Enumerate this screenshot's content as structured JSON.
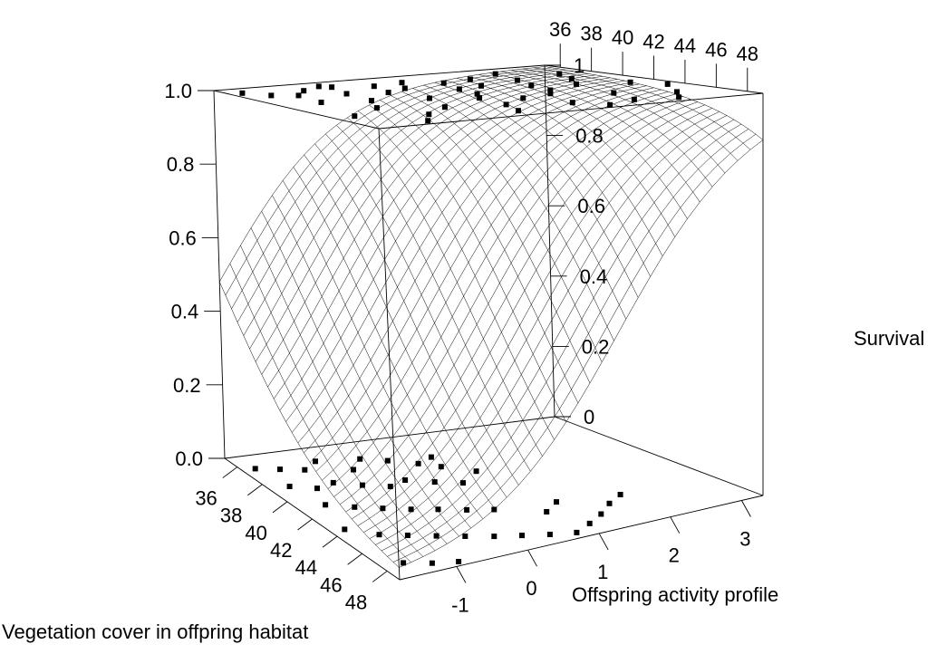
{
  "chart_data": {
    "type": "surface3d",
    "zlabel": "Survival",
    "xlabel": "Offspring activity profile",
    "ylabel": "Vegetation cover in offpring habitat",
    "left_z_ticks": [
      "0.0",
      "0.2",
      "0.4",
      "0.6",
      "0.8",
      "1.0"
    ],
    "right_z_ticks": [
      "0",
      "0.2",
      "0.4",
      "0.6",
      "0.8",
      "1"
    ],
    "x_ticks": [
      "-1",
      "0",
      "1",
      "2",
      "3"
    ],
    "y_ticks": [
      "36",
      "38",
      "40",
      "42",
      "44",
      "46",
      "48"
    ],
    "top_y_ticks": [
      "36",
      "38",
      "40",
      "42",
      "44",
      "46",
      "48"
    ],
    "xlim": [
      -1.8,
      3.3
    ],
    "ylim": [
      35,
      49
    ],
    "zlim": [
      0,
      1
    ],
    "surface": {
      "model": "logistic",
      "intercept": 0.15,
      "coef_activity": 1.1,
      "coef_vegetation": -0.25,
      "vegetation_center": 42
    },
    "top_points": [
      [
        -1.6,
        36.3
      ],
      [
        -1.4,
        37.6
      ],
      [
        -1.1,
        38.2
      ],
      [
        -0.8,
        37.0
      ],
      [
        -0.5,
        38.8
      ],
      [
        -0.3,
        36.6
      ],
      [
        0.0,
        39.4
      ],
      [
        0.2,
        37.3
      ],
      [
        0.4,
        38.6
      ],
      [
        0.7,
        36.9
      ],
      [
        0.9,
        40.1
      ],
      [
        1.1,
        38.0
      ],
      [
        1.3,
        39.7
      ],
      [
        1.6,
        37.5
      ],
      [
        1.8,
        40.8
      ],
      [
        2.0,
        38.9
      ],
      [
        2.3,
        41.5
      ],
      [
        2.6,
        39.8
      ],
      [
        2.9,
        42.3
      ],
      [
        -1.2,
        40.6
      ],
      [
        -0.6,
        41.3
      ],
      [
        0.1,
        42.0
      ],
      [
        0.6,
        43.1
      ],
      [
        1.0,
        44.2
      ],
      [
        1.5,
        43.6
      ],
      [
        2.1,
        45.0
      ],
      [
        2.7,
        46.3
      ],
      [
        -0.9,
        43.4
      ],
      [
        -0.2,
        44.8
      ],
      [
        0.5,
        45.6
      ],
      [
        1.2,
        46.7
      ],
      [
        1.9,
        47.4
      ],
      [
        -1.5,
        45.1
      ],
      [
        -0.7,
        46.4
      ],
      [
        0.3,
        47.6
      ],
      [
        1.4,
        48.3
      ],
      [
        2.4,
        47.9
      ],
      [
        -1.0,
        48.1
      ],
      [
        -0.4,
        36.1
      ],
      [
        0.8,
        41.9
      ],
      [
        1.7,
        42.6
      ],
      [
        2.2,
        36.5
      ],
      [
        2.8,
        38.1
      ],
      [
        3.1,
        43.8
      ]
    ],
    "bottom_points": [
      [
        -1.6,
        36.4
      ],
      [
        -1.3,
        36.8
      ],
      [
        -1.0,
        37.2
      ],
      [
        -0.7,
        36.5
      ],
      [
        -0.4,
        37.9
      ],
      [
        -0.1,
        36.9
      ],
      [
        0.2,
        37.5
      ],
      [
        0.5,
        38.3
      ],
      [
        0.8,
        37.8
      ],
      [
        -1.5,
        38.6
      ],
      [
        -1.2,
        39.2
      ],
      [
        -0.9,
        38.9
      ],
      [
        -0.6,
        39.6
      ],
      [
        -0.3,
        40.2
      ],
      [
        0.0,
        39.8
      ],
      [
        0.3,
        40.5
      ],
      [
        0.6,
        41.1
      ],
      [
        -1.4,
        40.9
      ],
      [
        -1.1,
        41.6
      ],
      [
        -0.8,
        42.2
      ],
      [
        -0.5,
        42.8
      ],
      [
        -0.2,
        43.3
      ],
      [
        0.1,
        43.9
      ],
      [
        0.4,
        44.4
      ],
      [
        -1.6,
        43.5
      ],
      [
        -1.3,
        44.6
      ],
      [
        -1.0,
        45.2
      ],
      [
        -0.7,
        45.8
      ],
      [
        -0.4,
        46.4
      ],
      [
        -0.1,
        47.0
      ],
      [
        0.2,
        47.5
      ],
      [
        0.5,
        48.0
      ],
      [
        0.8,
        48.4
      ],
      [
        1.1,
        47.8
      ],
      [
        1.4,
        47.1
      ],
      [
        1.7,
        46.2
      ],
      [
        2.0,
        45.5
      ],
      [
        1.2,
        44.9
      ],
      [
        0.9,
        45.7
      ],
      [
        -1.5,
        47.6
      ],
      [
        -1.2,
        48.2
      ],
      [
        -0.9,
        48.6
      ],
      [
        0.7,
        39.0
      ],
      [
        1.0,
        40.1
      ]
    ]
  }
}
